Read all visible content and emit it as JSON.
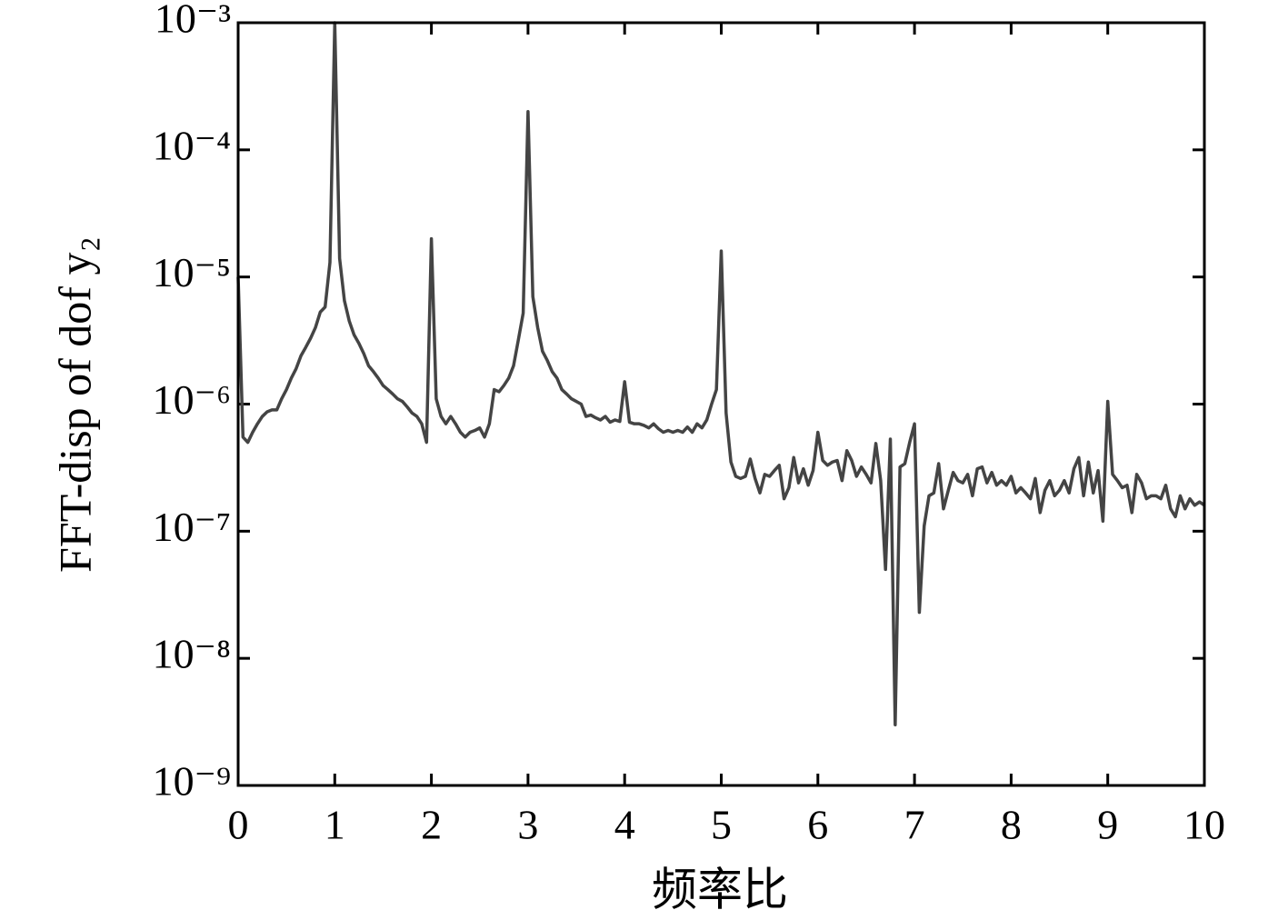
{
  "chart_data": {
    "type": "line",
    "xlabel": "频率比",
    "ylabel": "FFT-disp of dof y₂",
    "xlim": [
      0,
      10
    ],
    "xticks": [
      0,
      1,
      2,
      3,
      4,
      5,
      6,
      7,
      8,
      9,
      10
    ],
    "ylim": [
      1e-09,
      0.001
    ],
    "yscale": "log",
    "yticks": [
      {
        "value": 1e-09,
        "label": "10⁻⁹"
      },
      {
        "value": 1e-08,
        "label": "10⁻⁸"
      },
      {
        "value": 1e-07,
        "label": "10⁻⁷"
      },
      {
        "value": 1e-06,
        "label": "10⁻⁶"
      },
      {
        "value": 1e-05,
        "label": "10⁻⁵"
      },
      {
        "value": 0.0001,
        "label": "10⁻⁴"
      },
      {
        "value": 0.001,
        "label": "10⁻³"
      }
    ],
    "grid": false,
    "series": [
      {
        "color": "#444444",
        "x": [
          0,
          0.05,
          0.1,
          0.15,
          0.2,
          0.25,
          0.3,
          0.35,
          0.4,
          0.45,
          0.5,
          0.55,
          0.6,
          0.65,
          0.7,
          0.75,
          0.8,
          0.85,
          0.9,
          0.95,
          1,
          1.05,
          1.1,
          1.15,
          1.2,
          1.25,
          1.3,
          1.35,
          1.4,
          1.45,
          1.5,
          1.55,
          1.6,
          1.65,
          1.7,
          1.75,
          1.8,
          1.85,
          1.9,
          1.95,
          2,
          2.05,
          2.1,
          2.15,
          2.2,
          2.25,
          2.3,
          2.35,
          2.4,
          2.45,
          2.5,
          2.55,
          2.6,
          2.65,
          2.7,
          2.75,
          2.8,
          2.85,
          2.9,
          2.95,
          3,
          3.05,
          3.1,
          3.15,
          3.2,
          3.25,
          3.3,
          3.35,
          3.4,
          3.45,
          3.5,
          3.55,
          3.6,
          3.65,
          3.7,
          3.75,
          3.8,
          3.85,
          3.9,
          3.95,
          4,
          4.05,
          4.1,
          4.15,
          4.2,
          4.25,
          4.3,
          4.35,
          4.4,
          4.45,
          4.5,
          4.55,
          4.6,
          4.65,
          4.7,
          4.75,
          4.8,
          4.85,
          4.9,
          4.95,
          5,
          5.05,
          5.1,
          5.15,
          5.2,
          5.25,
          5.3,
          5.35,
          5.4,
          5.45,
          5.5,
          5.55,
          5.6,
          5.65,
          5.7,
          5.75,
          5.8,
          5.85,
          5.9,
          5.95,
          6,
          6.05,
          6.1,
          6.15,
          6.2,
          6.25,
          6.3,
          6.35,
          6.4,
          6.45,
          6.5,
          6.55,
          6.6,
          6.65,
          6.7,
          6.75,
          6.8,
          6.85,
          6.9,
          6.95,
          7,
          7.05,
          7.1,
          7.15,
          7.2,
          7.25,
          7.3,
          7.35,
          7.4,
          7.45,
          7.5,
          7.55,
          7.6,
          7.65,
          7.7,
          7.75,
          7.8,
          7.85,
          7.9,
          7.95,
          8,
          8.05,
          8.1,
          8.15,
          8.2,
          8.25,
          8.3,
          8.35,
          8.4,
          8.45,
          8.5,
          8.55,
          8.6,
          8.65,
          8.7,
          8.75,
          8.8,
          8.85,
          8.9,
          8.95,
          9,
          9.05,
          9.1,
          9.15,
          9.2,
          9.25,
          9.3,
          9.35,
          9.4,
          9.45,
          9.5,
          9.55,
          9.6,
          9.65,
          9.7,
          9.75,
          9.8,
          9.85,
          9.9,
          9.95,
          10
        ],
        "values": [
          1e-05,
          5.5e-07,
          5e-07,
          6e-07,
          7e-07,
          8e-07,
          8.7e-07,
          9e-07,
          9e-07,
          1.1e-06,
          1.3e-06,
          1.6e-06,
          1.9e-06,
          2.4e-06,
          2.8e-06,
          3.3e-06,
          4e-06,
          5.3e-06,
          5.8e-06,
          1.3e-05,
          0.001,
          1.4e-05,
          6.5e-06,
          4.5e-06,
          3.5e-06,
          3e-06,
          2.5e-06,
          2e-06,
          1.8e-06,
          1.6e-06,
          1.4e-06,
          1.3e-06,
          1.2e-06,
          1.1e-06,
          1.05e-06,
          9.5e-07,
          8.5e-07,
          8e-07,
          7e-07,
          5e-07,
          2e-05,
          1.1e-06,
          8e-07,
          7e-07,
          8e-07,
          7e-07,
          6e-07,
          5.5e-07,
          6e-07,
          6.2e-07,
          6.5e-07,
          5.5e-07,
          7e-07,
          1.3e-06,
          1.25e-06,
          1.4e-06,
          1.6e-06,
          2e-06,
          3.2e-06,
          5.2e-06,
          0.0002,
          7e-06,
          4e-06,
          2.6e-06,
          2.2e-06,
          1.8e-06,
          1.6e-06,
          1.3e-06,
          1.2e-06,
          1.1e-06,
          1.05e-06,
          1e-06,
          8e-07,
          8.2e-07,
          7.8e-07,
          7.5e-07,
          8e-07,
          7.2e-07,
          7.5e-07,
          7.3e-07,
          1.5e-06,
          7.2e-07,
          7e-07,
          7e-07,
          6.8e-07,
          6.5e-07,
          7e-07,
          6.4e-07,
          6e-07,
          6.2e-07,
          6e-07,
          6.2e-07,
          6e-07,
          6.6e-07,
          6e-07,
          7e-07,
          6.5e-07,
          7.5e-07,
          1e-06,
          1.3e-06,
          1.6e-05,
          8.5e-07,
          3.5e-07,
          2.7e-07,
          2.6e-07,
          2.7e-07,
          3.7e-07,
          2.6e-07,
          2e-07,
          2.8e-07,
          2.7e-07,
          3e-07,
          3.3e-07,
          1.8e-07,
          2.2e-07,
          3.8e-07,
          2.4e-07,
          3.1e-07,
          2.3e-07,
          3e-07,
          6e-07,
          3.6e-07,
          3.3e-07,
          3.5e-07,
          3.6e-07,
          2.5e-07,
          4.3e-07,
          3.6e-07,
          2.7e-07,
          3.2e-07,
          2.8e-07,
          2.4e-07,
          4.9e-07,
          2.5e-07,
          5e-08,
          5.3e-07,
          3e-09,
          3.2e-07,
          3.4e-07,
          5e-07,
          7e-07,
          2.3e-08,
          1.1e-07,
          1.9e-07,
          2e-07,
          3.4e-07,
          1.5e-07,
          2.1e-07,
          2.9e-07,
          2.5e-07,
          2.4e-07,
          2.8e-07,
          1.9e-07,
          3.1e-07,
          3.2e-07,
          2.4e-07,
          2.9e-07,
          2.3e-07,
          2.5e-07,
          2.3e-07,
          2.7e-07,
          2e-07,
          2.2e-07,
          2e-07,
          1.8e-07,
          2.6e-07,
          1.4e-07,
          2.1e-07,
          2.5e-07,
          1.9e-07,
          2.1e-07,
          2.5e-07,
          2e-07,
          3.1e-07,
          3.8e-07,
          1.9e-07,
          3.5e-07,
          2e-07,
          3e-07,
          1.2e-07,
          1.05e-06,
          2.8e-07,
          2.5e-07,
          2.2e-07,
          2.3e-07,
          1.4e-07,
          2.8e-07,
          2.4e-07,
          1.8e-07,
          1.9e-07,
          1.9e-07,
          1.8e-07,
          2.3e-07,
          1.5e-07,
          1.3e-07,
          1.9e-07,
          1.5e-07,
          1.8e-07,
          1.6e-07,
          1.7e-07,
          1.6e-07
        ]
      }
    ]
  }
}
